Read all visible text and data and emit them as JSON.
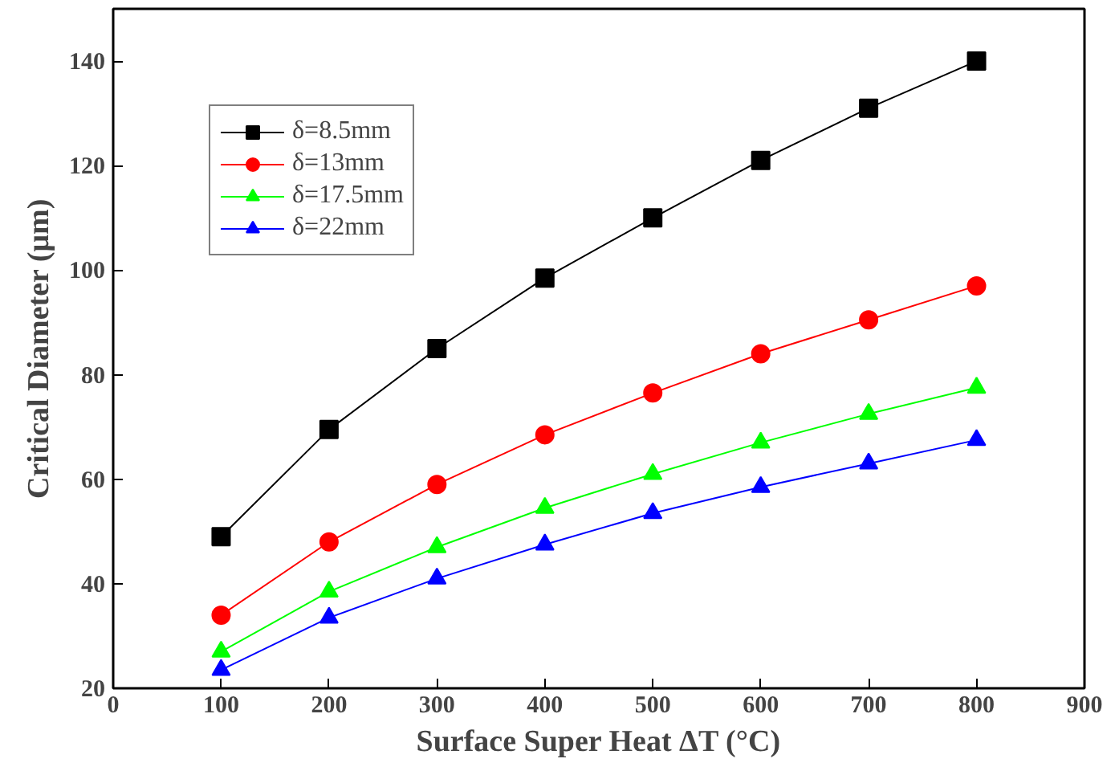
{
  "chart_data": {
    "type": "line",
    "xlabel": "Surface Super Heat ΔT (°C)",
    "ylabel": "Critical Diameter (μm)",
    "x": [
      100,
      200,
      300,
      400,
      500,
      600,
      700,
      800
    ],
    "xlim": [
      0,
      900
    ],
    "xticks": [
      0,
      100,
      200,
      300,
      400,
      500,
      600,
      700,
      800,
      900
    ],
    "ylim": [
      20,
      150
    ],
    "yticks": [
      20,
      40,
      60,
      80,
      100,
      120,
      140
    ],
    "grid": false,
    "legend": "top left",
    "line_style": "solid",
    "series": [
      {
        "name": "δ=8.5mm",
        "color": "#000000",
        "marker": "square",
        "values": [
          49,
          69.5,
          85,
          98.5,
          110,
          121,
          131,
          140
        ]
      },
      {
        "name": "δ=13mm",
        "color": "#ff0000",
        "marker": "circle",
        "values": [
          34,
          48,
          59,
          68.5,
          76.5,
          84,
          90.5,
          97
        ]
      },
      {
        "name": "δ=17.5mm",
        "color": "#00ff00",
        "marker": "triangle",
        "values": [
          27,
          38.5,
          47,
          54.5,
          61,
          67,
          72.5,
          77.5
        ]
      },
      {
        "name": "δ=22mm",
        "color": "#0000ff",
        "marker": "triangle",
        "values": [
          23.5,
          33.5,
          41,
          47.5,
          53.5,
          58.5,
          63,
          67.5
        ]
      }
    ]
  }
}
